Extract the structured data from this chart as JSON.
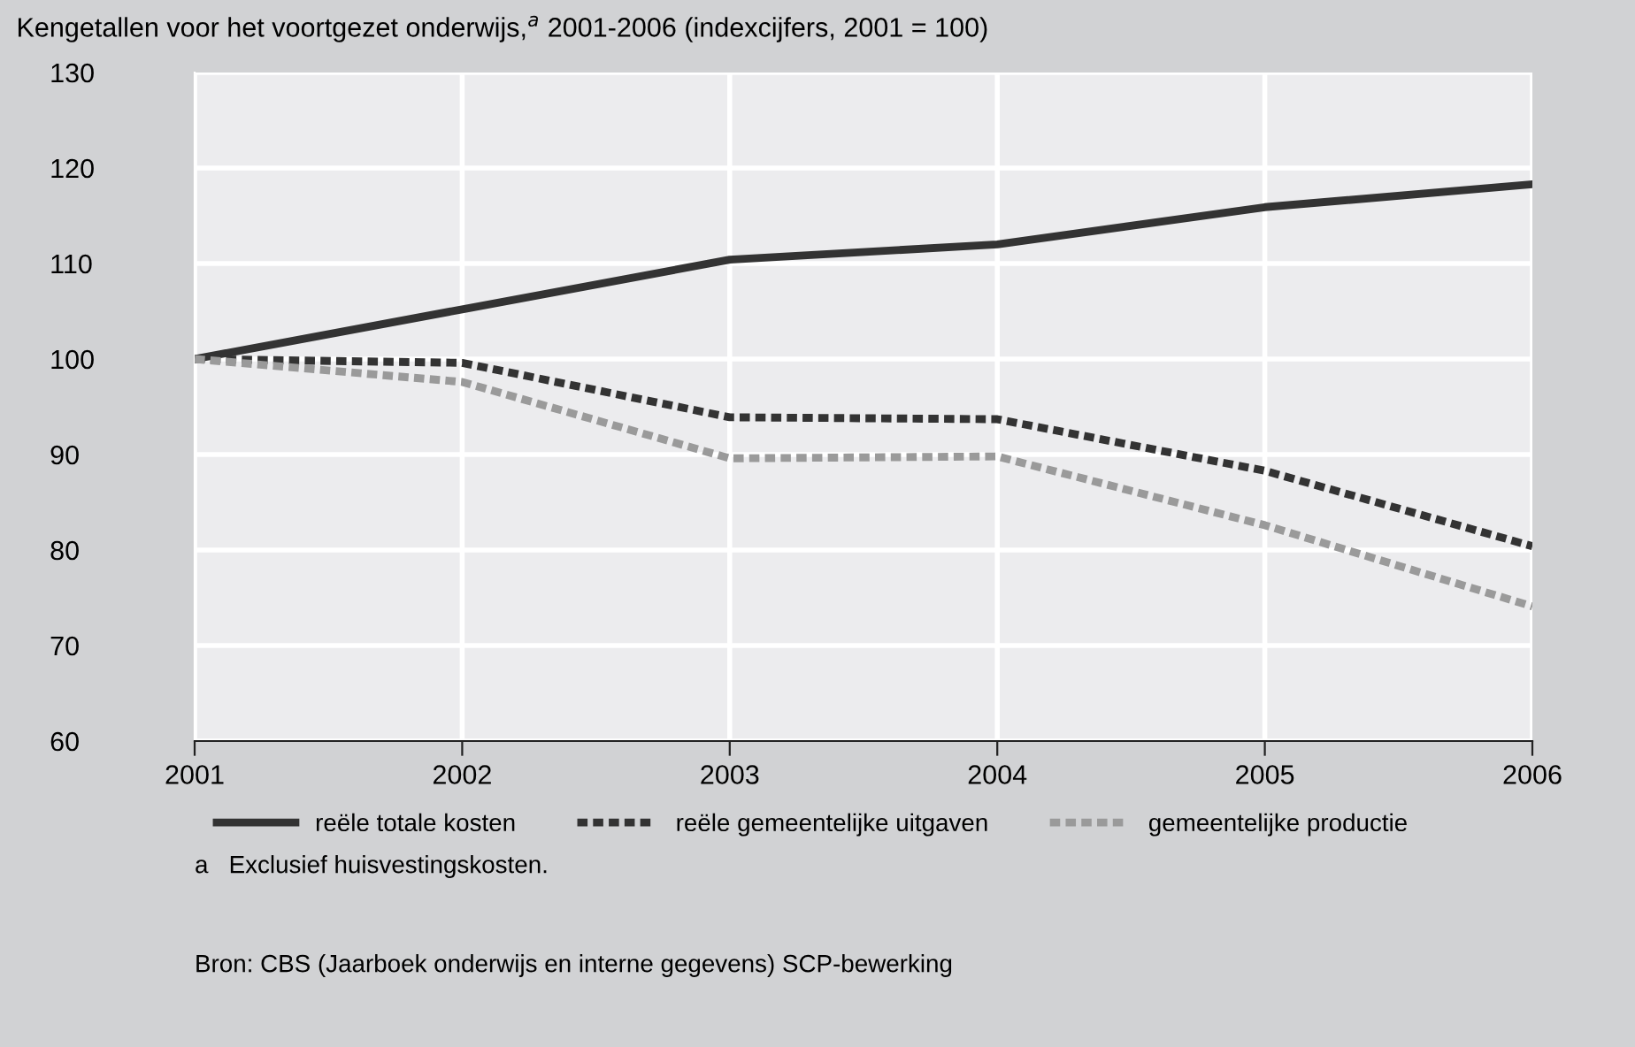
{
  "chart_data": {
    "type": "line",
    "title": "Kengetallen voor het voortgezet onderwijs,$^{a}$ 2001-2006 (indexcijfers, 2001 = 100)",
    "x": [
      2001,
      2002,
      2003,
      2004,
      2005,
      2006
    ],
    "series": [
      {
        "name": "reële totale kosten",
        "color": "#333333",
        "line_style": "solid",
        "values": [
          100,
          105.2,
          110.4,
          112,
          115.9,
          118.3
        ]
      },
      {
        "name": "reële gemeentelijke uitgaven",
        "color": "#333333",
        "line_style": "dotted",
        "values": [
          100,
          99.6,
          93.9,
          93.7,
          88.3,
          80.4
        ]
      },
      {
        "name": "gemeentelijke productie",
        "color": "#9a9a9a",
        "line_style": "dotted",
        "values": [
          100,
          97.6,
          89.6,
          89.8,
          82.6,
          74.1
        ]
      }
    ],
    "xlim": [
      2001,
      2006
    ],
    "xticks": [
      2001,
      2002,
      2003,
      2004,
      2005,
      2006
    ],
    "ylim": [
      60,
      130
    ],
    "yticks": [
      60,
      70,
      80,
      90,
      100,
      110,
      120,
      130
    ],
    "grid": true,
    "legend": "bottom",
    "annotations": [
      "a   Exclusief huisvestingskosten.",
      "Bron: CBS (Jaarboek onderwijs en interne gegevens) SCP-bewerking"
    ]
  }
}
